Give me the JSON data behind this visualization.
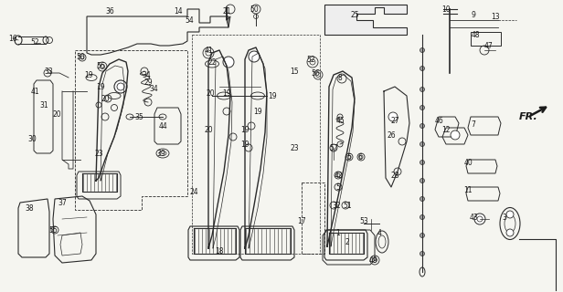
{
  "bg_color": "#f5f5f0",
  "fig_width": 6.16,
  "fig_height": 3.2,
  "dpi": 100,
  "lc": "#2a2a2a",
  "tc": "#1a1a1a",
  "fs": 5.5,
  "labels": [
    [
      "16",
      14,
      42
    ],
    [
      "52",
      38,
      46
    ],
    [
      "36",
      120,
      12
    ],
    [
      "14",
      195,
      12
    ],
    [
      "54",
      207,
      22
    ],
    [
      "50",
      88,
      62
    ],
    [
      "33",
      53,
      78
    ],
    [
      "56",
      110,
      72
    ],
    [
      "19",
      97,
      82
    ],
    [
      "41",
      38,
      100
    ],
    [
      "19",
      110,
      95
    ],
    [
      "20",
      115,
      108
    ],
    [
      "31",
      48,
      115
    ],
    [
      "20",
      62,
      125
    ],
    [
      "30",
      35,
      152
    ],
    [
      "23",
      108,
      168
    ],
    [
      "34",
      160,
      82
    ],
    [
      "29",
      162,
      90
    ],
    [
      "34",
      168,
      97
    ],
    [
      "35",
      152,
      128
    ],
    [
      "44",
      178,
      138
    ],
    [
      "39",
      176,
      168
    ],
    [
      "38",
      32,
      228
    ],
    [
      "37",
      68,
      222
    ],
    [
      "55",
      58,
      252
    ],
    [
      "21",
      248,
      12
    ],
    [
      "50",
      278,
      10
    ],
    [
      "41",
      228,
      55
    ],
    [
      "22",
      232,
      68
    ],
    [
      "15",
      322,
      78
    ],
    [
      "20",
      230,
      102
    ],
    [
      "19",
      248,
      102
    ],
    [
      "19",
      298,
      105
    ],
    [
      "19",
      282,
      122
    ],
    [
      "19",
      268,
      142
    ],
    [
      "20",
      228,
      142
    ],
    [
      "19",
      268,
      158
    ],
    [
      "23",
      322,
      162
    ],
    [
      "24",
      212,
      210
    ],
    [
      "17",
      330,
      242
    ],
    [
      "18",
      240,
      275
    ],
    [
      "25",
      388,
      16
    ],
    [
      "52",
      340,
      65
    ],
    [
      "56",
      345,
      80
    ],
    [
      "8",
      372,
      85
    ],
    [
      "45",
      372,
      132
    ],
    [
      "57",
      365,
      162
    ],
    [
      "5",
      382,
      172
    ],
    [
      "6",
      394,
      172
    ],
    [
      "42",
      370,
      192
    ],
    [
      "5",
      370,
      205
    ],
    [
      "32",
      368,
      225
    ],
    [
      "51",
      380,
      225
    ],
    [
      "53",
      398,
      242
    ],
    [
      "26",
      428,
      148
    ],
    [
      "27",
      432,
      132
    ],
    [
      "28",
      432,
      192
    ],
    [
      "1",
      370,
      255
    ],
    [
      "2",
      380,
      265
    ],
    [
      "4",
      415,
      255
    ],
    [
      "49",
      408,
      285
    ],
    [
      "10",
      488,
      10
    ],
    [
      "9",
      518,
      16
    ],
    [
      "13",
      542,
      18
    ],
    [
      "48",
      520,
      38
    ],
    [
      "47",
      535,
      50
    ],
    [
      "46",
      480,
      132
    ],
    [
      "12",
      488,
      142
    ],
    [
      "7",
      518,
      136
    ],
    [
      "40",
      512,
      178
    ],
    [
      "11",
      512,
      208
    ],
    [
      "43",
      518,
      238
    ],
    [
      "3",
      552,
      238
    ]
  ]
}
